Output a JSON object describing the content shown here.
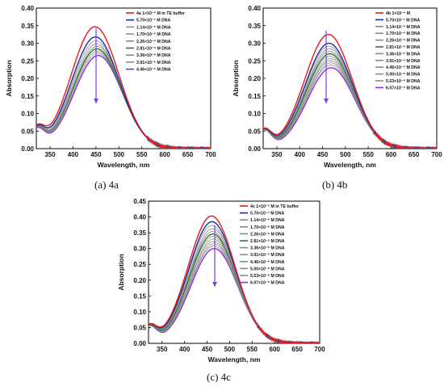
{
  "figure": {
    "captions": [
      "(a) 4a",
      "(b) 4b",
      "(c) 4c"
    ]
  },
  "legend_colors": [
    "#e8191e",
    "#1a2fa0",
    "#8a8a8a",
    "#8a8a8a",
    "#8a8a8a",
    "#2d7a2d",
    "#8a8a8a",
    "#8a8a8a",
    "#8a8a8a",
    "#8a8a8a",
    "#8a8a8a",
    "#8f2be0"
  ],
  "chart_data": [
    {
      "type": "line",
      "xlabel": "Wavelength, nm",
      "ylabel": "Absorption",
      "xlim": [
        320,
        700
      ],
      "ylim": [
        0.0,
        0.4
      ],
      "xticks": [
        "350",
        "400",
        "450",
        "500",
        "550",
        "600",
        "650",
        "700"
      ],
      "yticks": [
        "0.00",
        "0.05",
        "0.10",
        "0.15",
        "0.20",
        "0.25",
        "0.30",
        "0.35",
        "0.40"
      ],
      "arrow": "down",
      "series": [
        {
          "name": "4a 1×10⁻⁶ M in TE buffer",
          "color_index": 0,
          "peak_x": 448,
          "peak": 0.347
        },
        {
          "name": "5.70×10⁻⁷ M DNA",
          "color_index": 1,
          "peak_x": 449,
          "peak": 0.318
        },
        {
          "name": "1.14×10⁻⁶ M DNA",
          "color_index": 2,
          "peak_x": 450,
          "peak": 0.307
        },
        {
          "name": "1.70×10⁻⁶ M DNA",
          "color_index": 3,
          "peak_x": 451,
          "peak": 0.298
        },
        {
          "name": "2.26×10⁻⁶ M DNA",
          "color_index": 4,
          "peak_x": 452,
          "peak": 0.291
        },
        {
          "name": "2.81×10⁻⁶ M DNA",
          "color_index": 5,
          "peak_x": 452,
          "peak": 0.284
        },
        {
          "name": "3.36×10⁻⁶ M DNA",
          "color_index": 6,
          "peak_x": 453,
          "peak": 0.278
        },
        {
          "name": "3.91×10⁻⁶ M DNA",
          "color_index": 7,
          "peak_x": 454,
          "peak": 0.272
        },
        {
          "name": "4.46×10⁻⁶ M DNA",
          "color_index": 11,
          "peak_x": 455,
          "peak": 0.265
        }
      ]
    },
    {
      "type": "line",
      "xlabel": "Wavelength, nm",
      "ylabel": "Absorption",
      "xlim": [
        320,
        700
      ],
      "ylim": [
        0.0,
        0.4
      ],
      "xticks": [
        "350",
        "400",
        "450",
        "500",
        "550",
        "600",
        "650",
        "700"
      ],
      "yticks": [
        "0.00",
        "0.05",
        "0.10",
        "0.15",
        "0.20",
        "0.25",
        "0.30",
        "0.35",
        "0.40"
      ],
      "arrow": "down",
      "series": [
        {
          "name": "4b 1×10⁻⁶ M",
          "color_index": 0,
          "peak_x": 463,
          "peak": 0.325
        },
        {
          "name": "5.70×10⁻⁷ M DNA",
          "color_index": 1,
          "peak_x": 464,
          "peak": 0.3
        },
        {
          "name": "1.14×10⁻⁶ M DNA",
          "color_index": 2,
          "peak_x": 464,
          "peak": 0.292
        },
        {
          "name": "1.70×10⁻⁶ M DNA",
          "color_index": 3,
          "peak_x": 465,
          "peak": 0.284
        },
        {
          "name": "2.26×10⁻⁶ M DNA",
          "color_index": 4,
          "peak_x": 465,
          "peak": 0.277
        },
        {
          "name": "2.81×10⁻⁶ M DNA",
          "color_index": 5,
          "peak_x": 466,
          "peak": 0.27
        },
        {
          "name": "3.36×10⁻⁶ M DNA",
          "color_index": 6,
          "peak_x": 466,
          "peak": 0.263
        },
        {
          "name": "3.91×10⁻⁶ M DNA",
          "color_index": 7,
          "peak_x": 467,
          "peak": 0.256
        },
        {
          "name": "4.46×10⁻⁶ M DNA",
          "color_index": 8,
          "peak_x": 467,
          "peak": 0.25
        },
        {
          "name": "5.00×10⁻⁶ M DNA",
          "color_index": 9,
          "peak_x": 468,
          "peak": 0.244
        },
        {
          "name": "5.53×10⁻⁶ M DNA",
          "color_index": 10,
          "peak_x": 468,
          "peak": 0.238
        },
        {
          "name": "6.07×10⁻⁶ M DNA",
          "color_index": 11,
          "peak_x": 469,
          "peak": 0.23
        }
      ]
    },
    {
      "type": "line",
      "xlabel": "Wavelength, nm",
      "ylabel": "Absorption",
      "xlim": [
        320,
        700
      ],
      "ylim": [
        0.0,
        0.45
      ],
      "xticks": [
        "350",
        "400",
        "450",
        "500",
        "550",
        "600",
        "650",
        "700"
      ],
      "yticks": [
        "0.00",
        "0.05",
        "0.10",
        "0.15",
        "0.20",
        "0.25",
        "0.30",
        "0.35",
        "0.40",
        "0.45"
      ],
      "arrow": "down",
      "series": [
        {
          "name": "4c 1×10⁻⁶ M in TE buffer",
          "color_index": 0,
          "peak_x": 460,
          "peak": 0.403
        },
        {
          "name": "5.70×10⁻⁷ M DNA",
          "color_index": 1,
          "peak_x": 461,
          "peak": 0.385
        },
        {
          "name": "1.14×10⁻⁶ M DNA",
          "color_index": 2,
          "peak_x": 461,
          "peak": 0.373
        },
        {
          "name": "1.70×10⁻⁶ M DNA",
          "color_index": 3,
          "peak_x": 462,
          "peak": 0.363
        },
        {
          "name": "2.26×10⁻⁶ M DNA",
          "color_index": 4,
          "peak_x": 462,
          "peak": 0.354
        },
        {
          "name": "2.81×10⁻⁶ M DNA",
          "color_index": 5,
          "peak_x": 463,
          "peak": 0.346
        },
        {
          "name": "3.36×10⁻⁶ M DNA",
          "color_index": 6,
          "peak_x": 463,
          "peak": 0.338
        },
        {
          "name": "3.91×10⁻⁶ M DNA",
          "color_index": 7,
          "peak_x": 464,
          "peak": 0.33
        },
        {
          "name": "4.46×10⁻⁶ M DNA",
          "color_index": 8,
          "peak_x": 464,
          "peak": 0.322
        },
        {
          "name": "5.00×10⁻⁶ M DNA",
          "color_index": 9,
          "peak_x": 465,
          "peak": 0.315
        },
        {
          "name": "5.53×10⁻⁶ M DNA",
          "color_index": 10,
          "peak_x": 465,
          "peak": 0.308
        },
        {
          "name": "6.07×10⁻⁶ M DNA",
          "color_index": 11,
          "peak_x": 466,
          "peak": 0.3
        }
      ]
    }
  ]
}
